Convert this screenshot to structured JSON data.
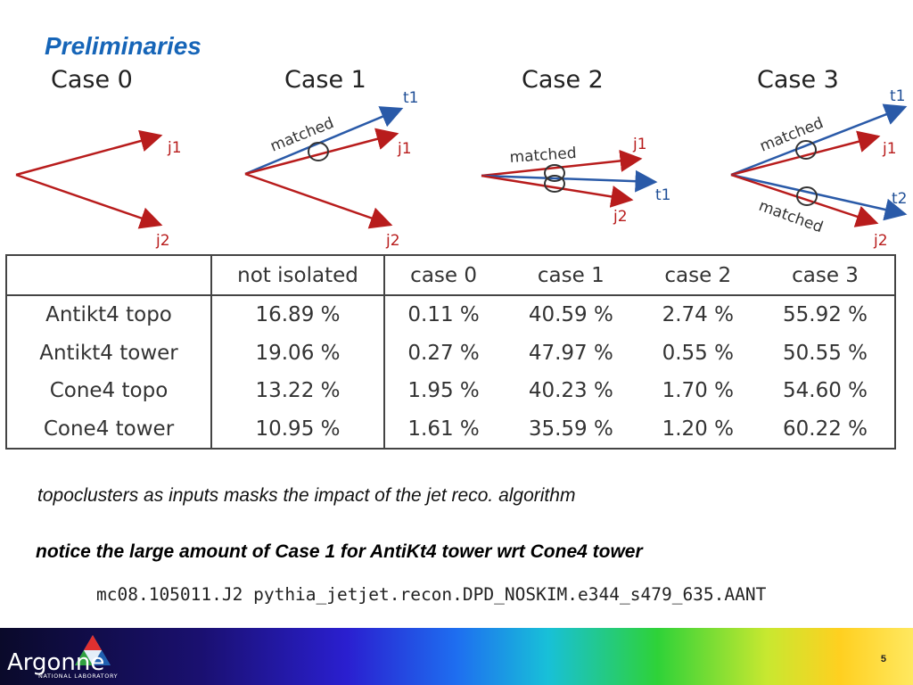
{
  "slide": {
    "title": "Preliminaries",
    "page_number": "5"
  },
  "cases": [
    {
      "label": "Case 0",
      "j1": "j1",
      "j2": "j2"
    },
    {
      "label": "Case 1",
      "t1": "t1",
      "j1": "j1",
      "j2": "j2",
      "matched": "matched"
    },
    {
      "label": "Case 2",
      "j1": "j1",
      "t1": "t1",
      "j2": "j2",
      "matched": "matched"
    },
    {
      "label": "Case 3",
      "t1": "t1",
      "j1": "j1",
      "t2": "t2",
      "j2": "j2",
      "matched_top": "matched",
      "matched_bottom": "matched"
    }
  ],
  "colors": {
    "jet_arrow": "#b81c1c",
    "truth_arrow": "#2a5aa8",
    "title": "#1665b8"
  },
  "table": {
    "headers": [
      "",
      "not isolated",
      "case 0",
      "case 1",
      "case 2",
      "case 3"
    ],
    "rows": [
      [
        "Antikt4 topo",
        "16.89 %",
        "0.11 %",
        "40.59 %",
        "2.74 %",
        "55.92 %"
      ],
      [
        "Antikt4 tower",
        "19.06 %",
        "0.27 %",
        "47.97 %",
        "0.55 %",
        "50.55 %"
      ],
      [
        "Cone4 topo",
        "13.22 %",
        "1.95 %",
        "40.23 %",
        "1.70 %",
        "54.60 %"
      ],
      [
        "Cone4 tower",
        "10.95 %",
        "1.61 %",
        "35.59 %",
        "1.20 %",
        "60.22 %"
      ]
    ]
  },
  "notes": {
    "line1": "topoclusters as inputs masks the impact of the jet reco. algorithm",
    "line2": "notice the large amount of Case 1 for AntiKt4 tower wrt Cone4 tower",
    "dataset": "mc08.105011.J2 pythia_jetjet.recon.DPD_NOSKIM.e344_s479_635.AANT"
  },
  "logo": {
    "name": "Argonne",
    "subtitle": "NATIONAL LABORATORY",
    "icon": "argonne-triangle-logo"
  }
}
